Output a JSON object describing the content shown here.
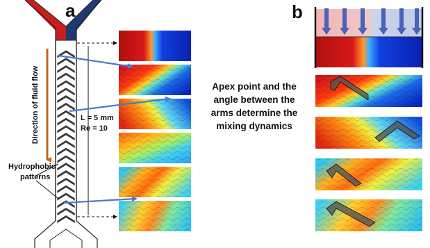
{
  "panel_a": {
    "letter": "a",
    "flow_label": "Direction of fluid flow",
    "length_label": "L = 5 mm",
    "re_label": "Re = 10",
    "hydrophobic_line1": "Hydrophobic",
    "hydrophobic_line2": "patterns",
    "colors": {
      "red_inlet": "#c81e1e",
      "blue_inlet": "#1f3a6e",
      "flow_arrow": "#c8641e",
      "pointer": "#4a7ac8"
    }
  },
  "panel_b": {
    "letter": "b"
  },
  "center_text": {
    "line1": "Apex point and the",
    "line2": "angle between the",
    "line3": "arms determine the",
    "line4": "mixing dynamics"
  },
  "cross_sections": {
    "mixing_levels": [
      0.0,
      0.2,
      0.35,
      0.55,
      0.7,
      0.8
    ]
  }
}
